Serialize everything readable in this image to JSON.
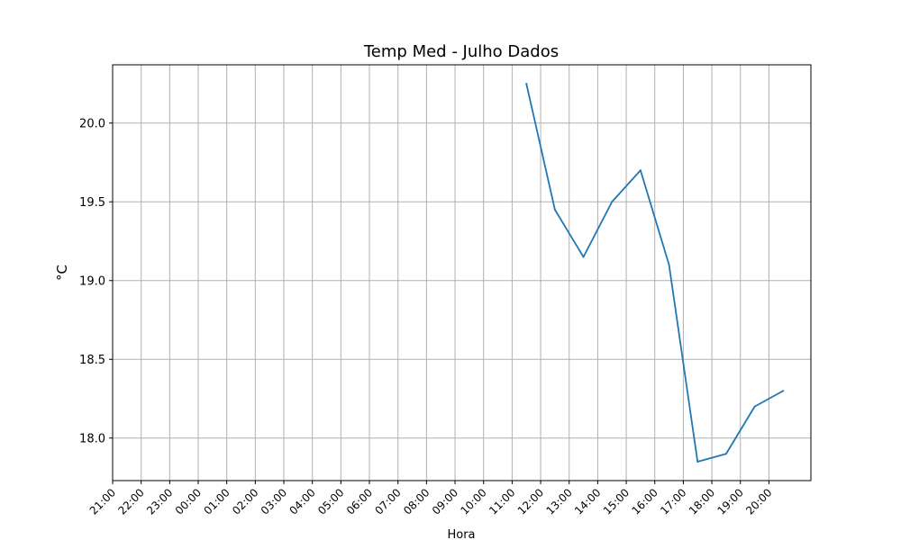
{
  "chart_data": {
    "type": "line",
    "title": "Temp Med - Julho Dados",
    "xlabel": "Hora",
    "ylabel": "°C",
    "x_ticks": [
      "21:00",
      "22:00",
      "23:00",
      "00:00",
      "01:00",
      "02:00",
      "03:00",
      "04:00",
      "05:00",
      "06:00",
      "07:00",
      "08:00",
      "09:00",
      "10:00",
      "11:00",
      "12:00",
      "13:00",
      "14:00",
      "15:00",
      "16:00",
      "17:00",
      "18:00",
      "19:00",
      "20:00"
    ],
    "y_ticks": [
      18.0,
      18.5,
      19.0,
      19.5,
      20.0
    ],
    "ylim": [
      17.73,
      20.37
    ],
    "grid": true,
    "series": [
      {
        "color": "#1f77b4",
        "x": [
          "11:00",
          "12:00",
          "13:00",
          "14:00",
          "15:00",
          "16:00",
          "17:00",
          "18:00",
          "19:00",
          "20:00"
        ],
        "values": [
          20.25,
          19.45,
          19.15,
          19.5,
          19.7,
          19.1,
          17.85,
          17.9,
          18.2,
          18.3
        ]
      }
    ]
  }
}
